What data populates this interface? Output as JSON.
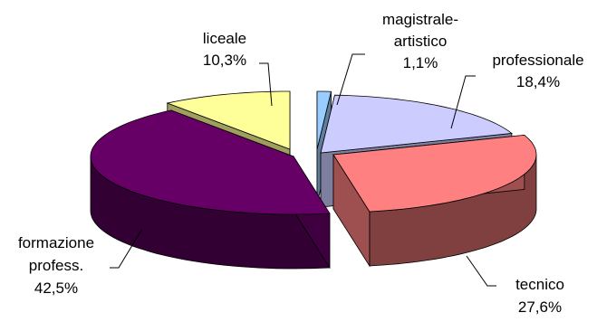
{
  "chart_data": {
    "type": "pie",
    "style": "3d-exploded",
    "title": "",
    "slices": [
      {
        "name": "magistrale-\nartistico",
        "label_lines": [
          "magistrale-",
          "artistico"
        ],
        "value_label": "1,1%",
        "value": 1.1,
        "color": "#99CCFF"
      },
      {
        "name": "professionale",
        "label_lines": [
          "professionale"
        ],
        "value_label": "18,4%",
        "value": 18.4,
        "color": "#CCCCFF"
      },
      {
        "name": "tecnico",
        "label_lines": [
          "tecnico"
        ],
        "value_label": "27,6%",
        "value": 27.6,
        "color": "#FF8080"
      },
      {
        "name": "formazione\nprofess.",
        "label_lines": [
          "formazione",
          "profess."
        ],
        "value_label": "42,5%",
        "value": 42.5,
        "color": "#660066"
      },
      {
        "name": "liceale",
        "label_lines": [
          "liceale"
        ],
        "value_label": "10,3%",
        "value": 10.3,
        "color": "#FFFF99"
      }
    ]
  }
}
